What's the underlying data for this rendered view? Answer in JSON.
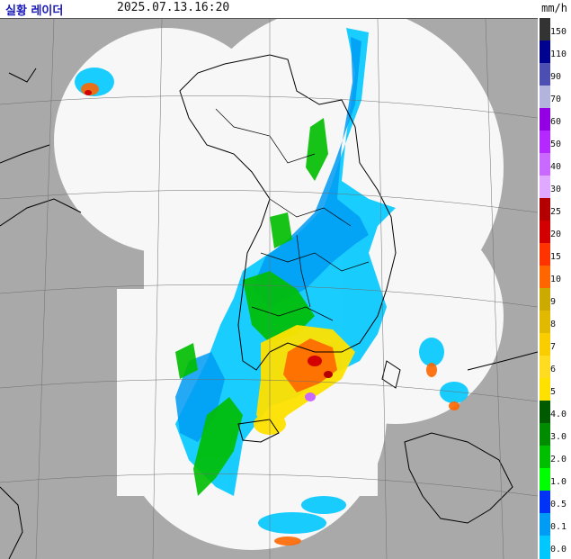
{
  "header": {
    "title": "실황 레이더",
    "timestamp": "2025.07.13.16:20",
    "unit": "mm/h"
  },
  "legend": {
    "levels": [
      {
        "label": "150",
        "color": "#333333"
      },
      {
        "label": "110",
        "color": "#000390"
      },
      {
        "label": "90",
        "color": "#4c4eb1"
      },
      {
        "label": "70",
        "color": "#b3b4de"
      },
      {
        "label": "60",
        "color": "#9300e4"
      },
      {
        "label": "50",
        "color": "#b329ff"
      },
      {
        "label": "40",
        "color": "#c969ff"
      },
      {
        "label": "30",
        "color": "#e0a9ff"
      },
      {
        "label": "25",
        "color": "#b40000"
      },
      {
        "label": "20",
        "color": "#d20000"
      },
      {
        "label": "15",
        "color": "#ff3300"
      },
      {
        "label": "10",
        "color": "#ff6600"
      },
      {
        "label": "9",
        "color": "#ccaa00"
      },
      {
        "label": "8",
        "color": "#e0b900"
      },
      {
        "label": "7",
        "color": "#f9cd00"
      },
      {
        "label": "6",
        "color": "#ffdc1f"
      },
      {
        "label": "5",
        "color": "#ffe100"
      },
      {
        "label": "4.0",
        "color": "#005a00"
      },
      {
        "label": "3.0",
        "color": "#008c00"
      },
      {
        "label": "2.0",
        "color": "#00be00"
      },
      {
        "label": "1.0",
        "color": "#00ff00"
      },
      {
        "label": "0.5",
        "color": "#0033f5"
      },
      {
        "label": "0.1",
        "color": "#009bf5"
      },
      {
        "label": "0.0",
        "color": "#00c8ff"
      }
    ],
    "bottom_label": "0.0"
  },
  "map": {
    "colors": {
      "outside_coverage": "#a9a9a9",
      "coverage": "#f7f7f7",
      "coastline": "#000000",
      "grid": "#6e6e6e"
    }
  }
}
